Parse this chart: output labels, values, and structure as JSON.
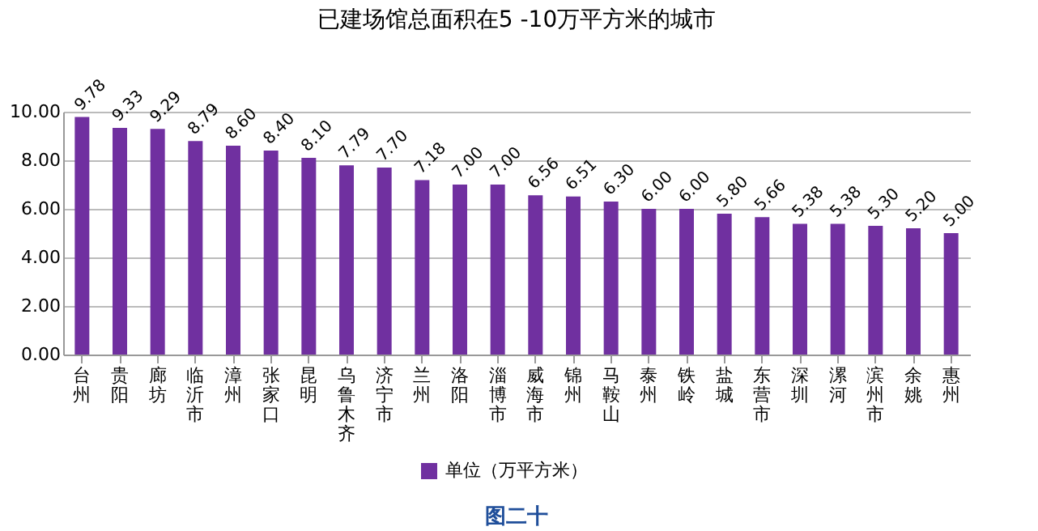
{
  "chart_data": {
    "type": "bar",
    "title": "已建场馆总面积在5 -10万平方米的城市",
    "categories": [
      "台州",
      "贵阳",
      "廊坊",
      "临沂市",
      "漳州",
      "张家口",
      "昆明",
      "乌鲁木齐",
      "济宁市",
      "兰州",
      "洛阳",
      "淄博市",
      "威海市",
      "锦州",
      "马鞍山",
      "泰州",
      "铁岭",
      "盐城",
      "东营市",
      "深圳",
      "漯河",
      "滨州市",
      "余姚",
      "惠州"
    ],
    "series": [
      {
        "name": "单位（万平方米）",
        "color": "#7030a0",
        "values": [
          9.78,
          9.33,
          9.29,
          8.79,
          8.6,
          8.4,
          8.1,
          7.79,
          7.7,
          7.18,
          7.0,
          7.0,
          6.56,
          6.51,
          6.3,
          6.0,
          6.0,
          5.8,
          5.66,
          5.38,
          5.38,
          5.3,
          5.2,
          5.0
        ]
      }
    ],
    "value_labels": [
      "9.78",
      "9.33",
      "9.29",
      "8.79",
      "8.60",
      "8.40",
      "8.10",
      "7.79",
      "7.70",
      "7.18",
      "7.00",
      "7.00",
      "6.56",
      "6.51",
      "6.30",
      "6.00",
      "6.00",
      "5.80",
      "5.66",
      "5.38",
      "5.38",
      "5.30",
      "5.20",
      "5.00"
    ],
    "ylim": [
      0,
      10
    ],
    "yticks": [
      {
        "value": 0,
        "label": "0.00"
      },
      {
        "value": 2,
        "label": "2.00"
      },
      {
        "value": 4,
        "label": "4.00"
      },
      {
        "value": 6,
        "label": "6.00"
      },
      {
        "value": 8,
        "label": "8.00"
      },
      {
        "value": 10,
        "label": "10.00"
      }
    ],
    "grid": "y",
    "legend": "bottom",
    "annotations": [
      "图二十"
    ]
  }
}
